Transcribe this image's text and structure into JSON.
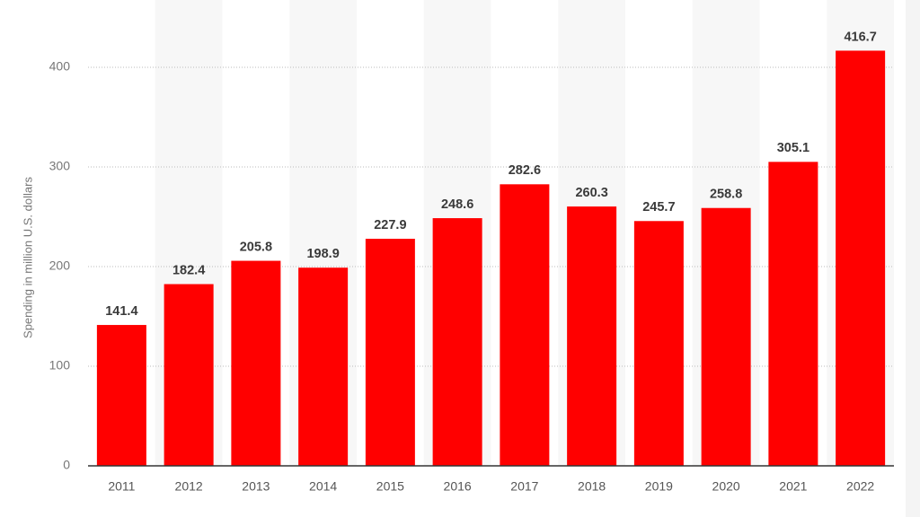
{
  "chart_data": {
    "type": "bar",
    "y_label": "Spending in million U.S. dollars",
    "categories": [
      "2011",
      "2012",
      "2013",
      "2014",
      "2015",
      "2016",
      "2017",
      "2018",
      "2019",
      "2020",
      "2021",
      "2022"
    ],
    "values": [
      141.4,
      182.4,
      205.8,
      198.9,
      227.9,
      248.6,
      282.6,
      260.3,
      245.7,
      258.8,
      305.1,
      416.7
    ],
    "color": "#ff0000",
    "ylim": [
      0,
      450
    ],
    "yticks": [
      0,
      100,
      200,
      300,
      400
    ],
    "grid": true
  }
}
